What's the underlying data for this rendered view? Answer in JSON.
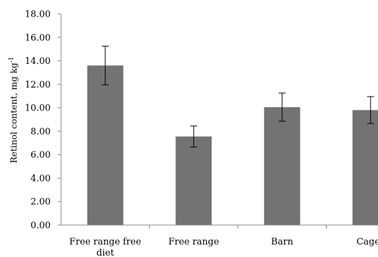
{
  "chart_data": {
    "type": "bar",
    "title": "",
    "xlabel": "",
    "ylabel": "Retinol content, mg kg",
    "ylabel_superscript": "-1",
    "ylim": [
      0,
      18
    ],
    "yticks": [
      "0.00",
      "2.00",
      "4.00",
      "6.00",
      "8.00",
      "10.00",
      "12.00",
      "14.00",
      "16.00",
      "18.00"
    ],
    "categories": [
      [
        "Free range free",
        "diet"
      ],
      [
        "Free range"
      ],
      [
        "Barn"
      ],
      [
        "Cages"
      ]
    ],
    "values": [
      13.6,
      7.55,
      10.05,
      9.8
    ],
    "errors": [
      1.65,
      0.9,
      1.2,
      1.15
    ],
    "bar_color": "#737373",
    "grid": false,
    "legend": "none"
  }
}
